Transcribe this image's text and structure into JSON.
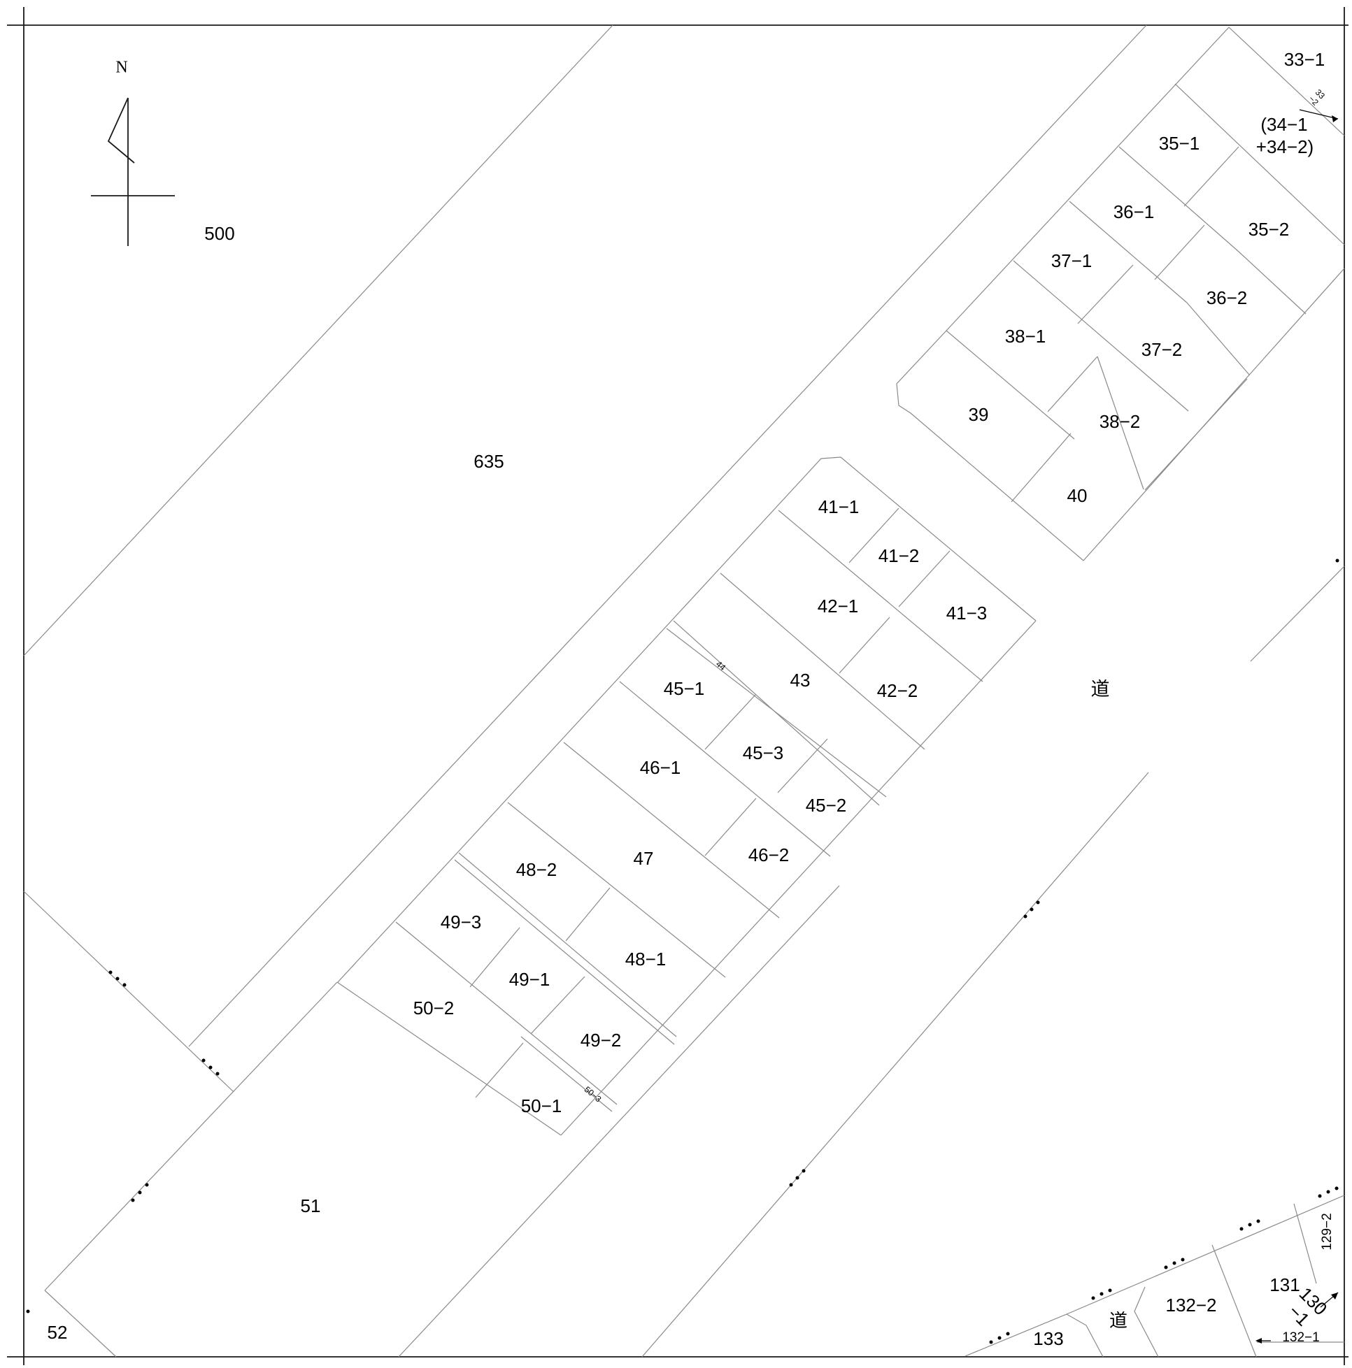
{
  "compass": {
    "north": "N"
  },
  "parcels": [
    {
      "id": "p500",
      "label": "500"
    },
    {
      "id": "p635",
      "label": "635"
    },
    {
      "id": "p33_1",
      "label": "33−1"
    },
    {
      "id": "p33_2",
      "label": "33\n−2"
    },
    {
      "id": "p34a",
      "label": "(34−1"
    },
    {
      "id": "p34b",
      "label": "+34−2)"
    },
    {
      "id": "p35_1",
      "label": "35−1"
    },
    {
      "id": "p35_2",
      "label": "35−2"
    },
    {
      "id": "p36_1",
      "label": "36−1"
    },
    {
      "id": "p36_2",
      "label": "36−2"
    },
    {
      "id": "p37_1",
      "label": "37−1"
    },
    {
      "id": "p37_2",
      "label": "37−2"
    },
    {
      "id": "p38_1",
      "label": "38−1"
    },
    {
      "id": "p38_2",
      "label": "38−2"
    },
    {
      "id": "p39",
      "label": "39"
    },
    {
      "id": "p40",
      "label": "40"
    },
    {
      "id": "p41_1",
      "label": "41−1"
    },
    {
      "id": "p41_2",
      "label": "41−2"
    },
    {
      "id": "p41_3",
      "label": "41−3"
    },
    {
      "id": "p42_1",
      "label": "42−1"
    },
    {
      "id": "p42_2",
      "label": "42−2"
    },
    {
      "id": "p43",
      "label": "43"
    },
    {
      "id": "p44",
      "label": "44"
    },
    {
      "id": "p45_1",
      "label": "45−1"
    },
    {
      "id": "p45_2",
      "label": "45−2"
    },
    {
      "id": "p45_3",
      "label": "45−3"
    },
    {
      "id": "p46_1",
      "label": "46−1"
    },
    {
      "id": "p46_2",
      "label": "46−2"
    },
    {
      "id": "p47",
      "label": "47"
    },
    {
      "id": "p48_1",
      "label": "48−1"
    },
    {
      "id": "p48_2",
      "label": "48−2"
    },
    {
      "id": "p49_1",
      "label": "49−1"
    },
    {
      "id": "p49_2",
      "label": "49−2"
    },
    {
      "id": "p49_3",
      "label": "49−3"
    },
    {
      "id": "p50_1",
      "label": "50−1"
    },
    {
      "id": "p50_2",
      "label": "50−2"
    },
    {
      "id": "p50_3",
      "label": "50−3"
    },
    {
      "id": "p51",
      "label": "51"
    },
    {
      "id": "p52",
      "label": "52"
    },
    {
      "id": "road1",
      "label": "道"
    },
    {
      "id": "road2",
      "label": "道"
    },
    {
      "id": "p129_2",
      "label": "129−2"
    },
    {
      "id": "p130_1",
      "label": "130\n−1"
    },
    {
      "id": "p131",
      "label": "131"
    },
    {
      "id": "p132_1",
      "label": "132−1"
    },
    {
      "id": "p132_2",
      "label": "132−2"
    },
    {
      "id": "p133",
      "label": "133"
    }
  ]
}
